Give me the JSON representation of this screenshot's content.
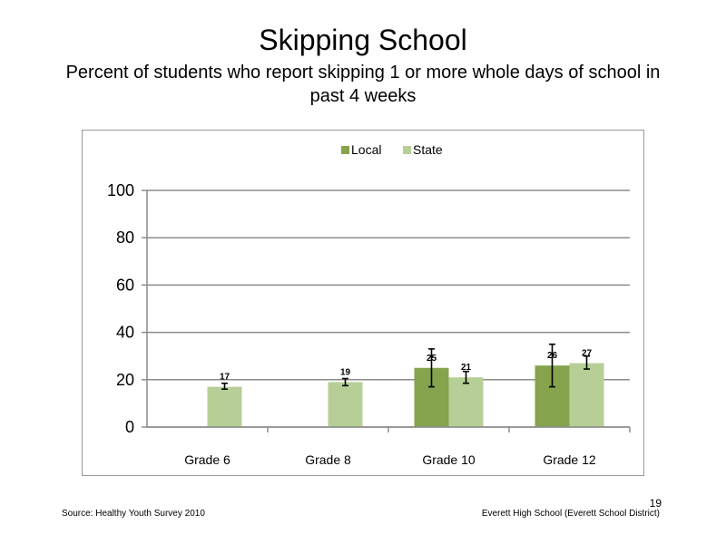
{
  "title": "Skipping School",
  "subtitle": "Percent of students who report skipping 1 or more whole days of school in past 4 weeks",
  "footer": {
    "source": "Source: Healthy Youth Survey 2010",
    "school": "Everett High School (Everett School District)",
    "page_number": "19"
  },
  "chart_data": {
    "type": "bar",
    "categories": [
      "Grade 6",
      "Grade 8",
      "Grade 10",
      "Grade 12"
    ],
    "series": [
      {
        "name": "Local",
        "color": "#86a34d",
        "values": [
          null,
          null,
          25,
          26
        ],
        "labels": [
          "",
          "",
          "25",
          "26"
        ],
        "error_low": [
          null,
          null,
          17,
          17
        ],
        "error_high": [
          null,
          null,
          33,
          35
        ]
      },
      {
        "name": "State",
        "color": "#b7cf96",
        "values": [
          17,
          19,
          21,
          27
        ],
        "labels": [
          "17",
          "19",
          "21",
          "27"
        ],
        "error_low": [
          16,
          17.5,
          18.5,
          24.5
        ],
        "error_high": [
          18.5,
          20.5,
          23.5,
          30
        ]
      }
    ],
    "y_ticks": [
      "0",
      "20",
      "40",
      "60",
      "80",
      "100"
    ],
    "ylim": [
      0,
      100
    ],
    "grid": true,
    "legend_position": "top"
  }
}
